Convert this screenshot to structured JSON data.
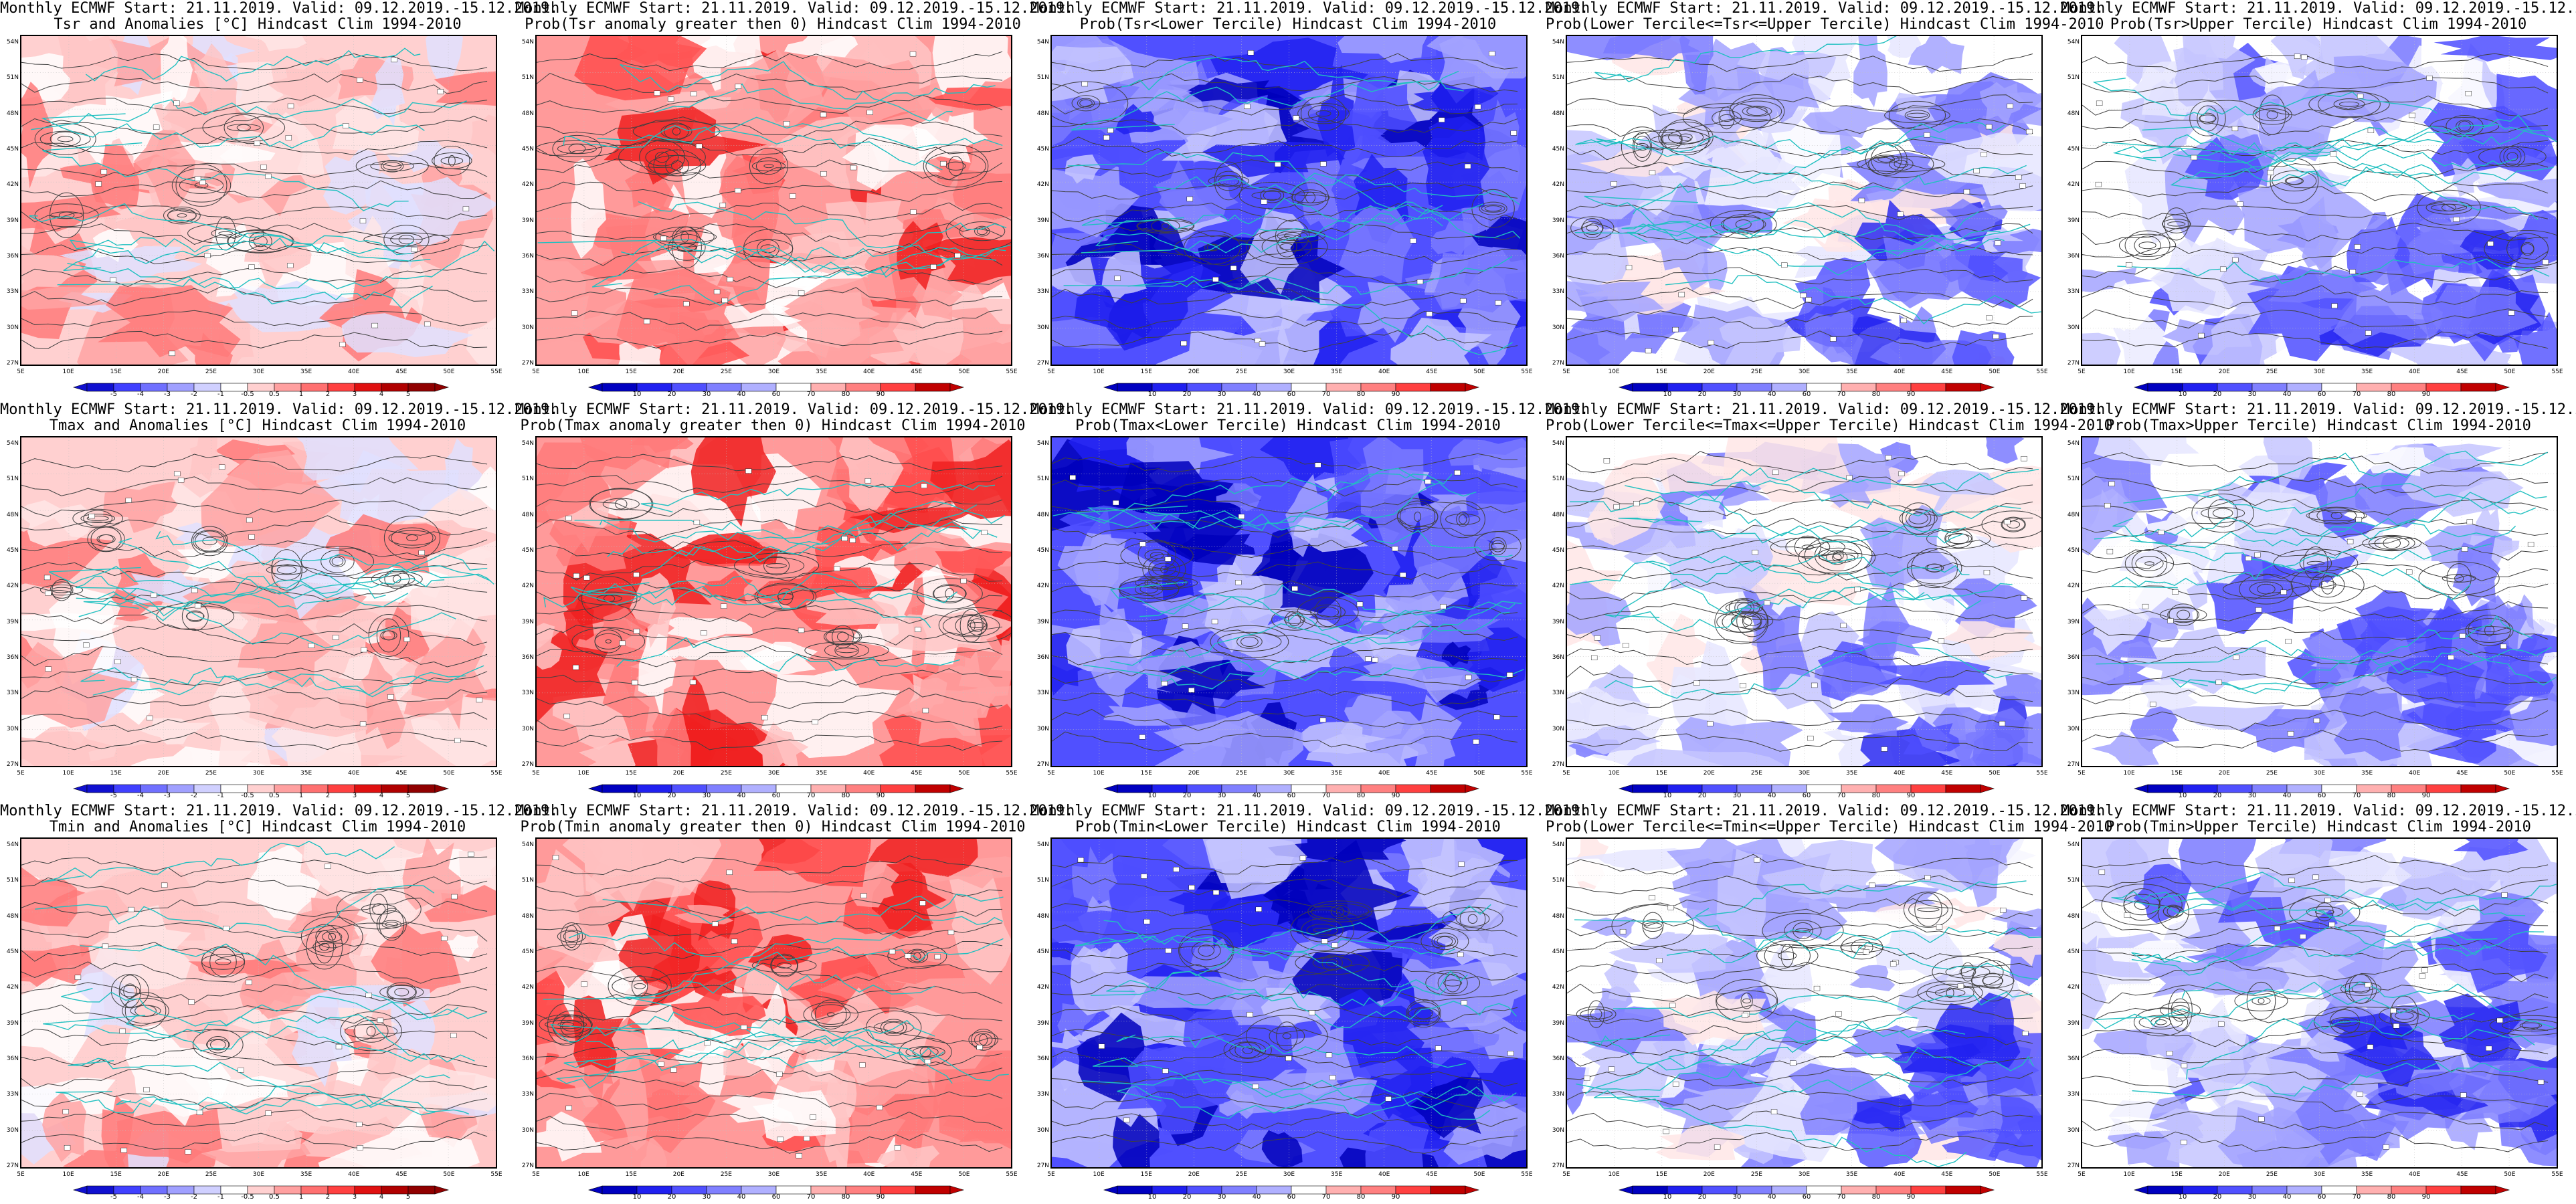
{
  "rows": [
    {
      "anomaly_title": "Tsr and Anomalies [°C] Hindcast Clim 1994-2010",
      "probpos_title": "Prob(Tsr anomaly greater then 0) Hindcast Clim 1994-2010",
      "lower_title": "Prob(Tsr<Lower Tercile) Hindcast Clim 1994-2010",
      "middle_title": "Prob(Lower Tercile<=Tsr<=Upper Tercile) Hindcast Clim 1994-2010",
      "upper_title": "Prob(Tsr>Upper Tercile) Hindcast Clim 1994-2010"
    },
    {
      "anomaly_title": "Tmax and Anomalies [°C] Hindcast Clim 1994-2010",
      "probpos_title": "Prob(Tmax anomaly greater then 0) Hindcast Clim 1994-2010",
      "lower_title": "Prob(Tmax<Lower Tercile) Hindcast Clim 1994-2010",
      "middle_title": "Prob(Lower Tercile<=Tmax<=Upper Tercile) Hindcast Clim 1994-2010",
      "upper_title": "Prob(Tmax>Upper Tercile) Hindcast Clim 1994-2010"
    },
    {
      "anomaly_title": "Tmin and Anomalies [°C] Hindcast Clim 1994-2010",
      "probpos_title": "Prob(Tmin anomaly greater then 0) Hindcast Clim 1994-2010",
      "lower_title": "Prob(Tmin<Lower Tercile) Hindcast Clim 1994-2010",
      "middle_title": "Prob(Lower Tercile<=Tmin<=Upper Tercile) Hindcast Clim 1994-2010",
      "upper_title": "Prob(Tmin>Upper Tercile) Hindcast Clim 1994-2010"
    }
  ],
  "common_header": "Monthly ECMWF Start: 21.11.2019. Valid: 09.12.2019.-15.12.2019.",
  "lat_labels": [
    "54N",
    "51N",
    "48N",
    "45N",
    "42N",
    "39N",
    "36N",
    "33N",
    "30N",
    "27N"
  ],
  "lon_labels": [
    "5E",
    "10E",
    "15E",
    "20E",
    "25E",
    "30E",
    "35E",
    "40E",
    "45E",
    "50E",
    "55E"
  ],
  "anomaly_scale": [
    "-5",
    "-4",
    "-3",
    "-2",
    "-1",
    "-0.5",
    "0.5",
    "1",
    "2",
    "3",
    "4",
    "5"
  ],
  "prob_scale": [
    "10",
    "20",
    "30",
    "40",
    "60",
    "70",
    "80",
    "90"
  ],
  "colors": {
    "red_scale": [
      "#ffe6e6",
      "#ffc6c6",
      "#ffa3a3",
      "#ff7a7a",
      "#ff4d4d",
      "#f02020",
      "#cc0000"
    ],
    "blue_scale": [
      "#e6e6ff",
      "#c6c6ff",
      "#a3a3ff",
      "#7a7aff",
      "#4d4dff",
      "#2020f0",
      "#0000bb"
    ],
    "coast": "#20c0c0",
    "contour": "#404040"
  }
}
